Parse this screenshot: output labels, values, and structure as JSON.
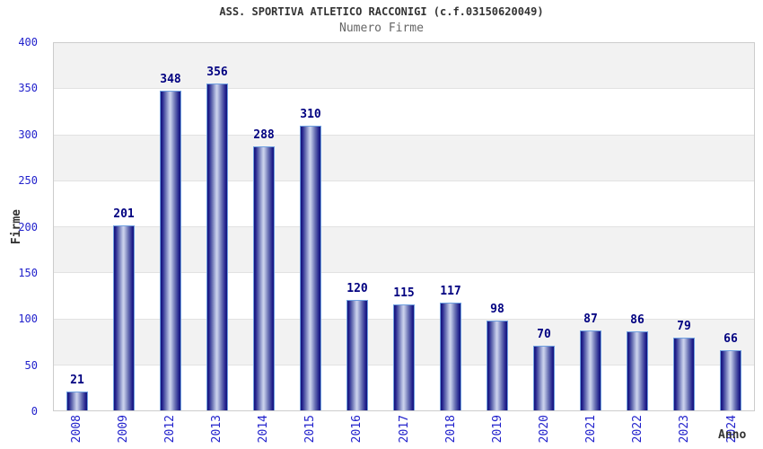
{
  "chart": {
    "title": "ASS. SPORTIVA ATLETICO RACCONIGI (c.f.03150620049)",
    "subtitle": "Numero Firme",
    "y_axis_title": "Firme",
    "x_axis_title": "Anno"
  },
  "chart_data": {
    "type": "bar",
    "title": "ASS. SPORTIVA ATLETICO RACCONIGI (c.f.03150620049)",
    "subtitle": "Numero Firme",
    "xlabel": "Anno",
    "ylabel": "Firme",
    "categories": [
      "2008",
      "2009",
      "2012",
      "2013",
      "2014",
      "2015",
      "2016",
      "2017",
      "2018",
      "2019",
      "2020",
      "2021",
      "2022",
      "2023",
      "2024"
    ],
    "values": [
      21,
      201,
      348,
      356,
      288,
      310,
      120,
      115,
      117,
      98,
      70,
      87,
      86,
      79,
      66
    ],
    "ylim": [
      0,
      400
    ],
    "y_ticks": [
      0,
      50,
      100,
      150,
      200,
      250,
      300,
      350,
      400
    ],
    "grid": "horizontal-bands-alternating",
    "legend": "none",
    "colors": {
      "bar_dark": "#14147a",
      "bar_light": "#cdd3ec",
      "bar_border": "#6fa0e0",
      "axis_label": "#2222cc",
      "value_label": "#000080",
      "band_gray": "#f2f2f2",
      "band_white": "#ffffff",
      "plot_border": "#cccccc",
      "title": "#333333",
      "subtitle": "#666666"
    }
  }
}
